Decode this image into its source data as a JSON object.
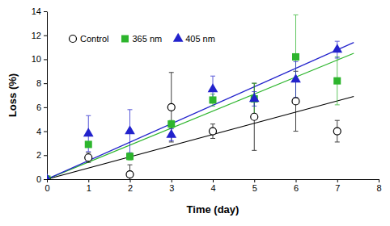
{
  "chart_data": {
    "type": "scatter",
    "x_label": "Time (day)",
    "y_label": "Loss (%)",
    "x": [
      0,
      1,
      2,
      3,
      4,
      5,
      6,
      7
    ],
    "xlim": [
      0,
      8
    ],
    "xticks": [
      0,
      1,
      2,
      3,
      4,
      5,
      6,
      7,
      8
    ],
    "ylim": [
      0,
      14
    ],
    "yticks": [
      0,
      2,
      4,
      6,
      8,
      10,
      12,
      14
    ],
    "grid": false,
    "legend": "upper left",
    "series": [
      {
        "name": "Control",
        "color": "#000000",
        "marker": "circle-open",
        "values": [
          0,
          1.8,
          0.4,
          6.0,
          4.0,
          5.2,
          6.5,
          4.0
        ],
        "errors": [
          0,
          0.4,
          0.8,
          2.9,
          0.6,
          2.8,
          2.5,
          0.9
        ],
        "trendline": {
          "x": [
            0,
            7.4
          ],
          "values": [
            0,
            6.9
          ]
        }
      },
      {
        "name": "365 nm",
        "color": "#2db52d",
        "marker": "square",
        "values": [
          0,
          2.9,
          1.9,
          4.6,
          6.6,
          6.7,
          10.2,
          8.2
        ],
        "errors": [
          0,
          0.2,
          0.3,
          0.3,
          0.5,
          1.3,
          3.5,
          2.0
        ],
        "trendline": {
          "x": [
            0,
            7.4
          ],
          "values": [
            0,
            10.5
          ]
        }
      },
      {
        "name": "405 nm",
        "color": "#2222cc",
        "marker": "triangle",
        "values": [
          0,
          3.8,
          4.0,
          3.7,
          7.5,
          6.7,
          8.3,
          10.8
        ],
        "errors": [
          0,
          1.5,
          1.8,
          0.5,
          1.1,
          0.6,
          1.5,
          0.7
        ],
        "trendline": {
          "x": [
            0,
            7.4
          ],
          "values": [
            0,
            11.4
          ]
        }
      }
    ]
  }
}
